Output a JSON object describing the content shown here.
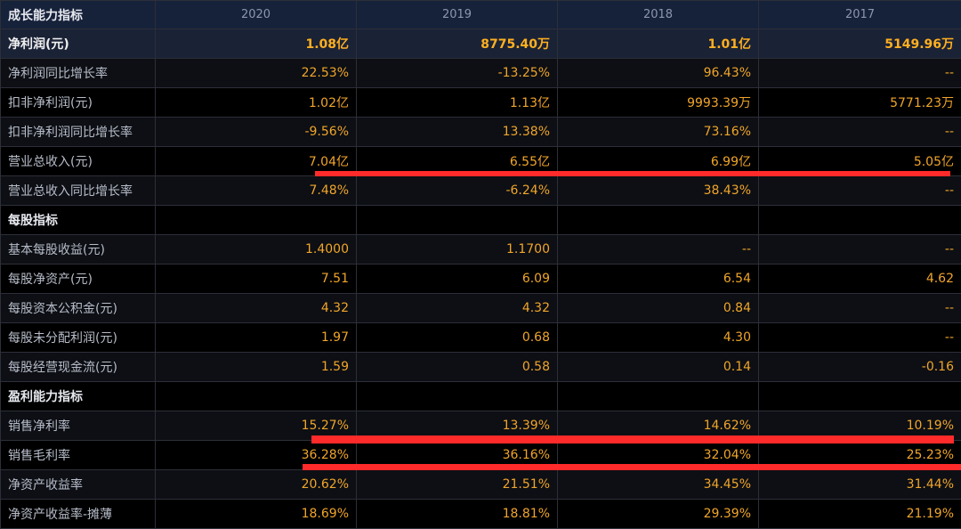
{
  "table": {
    "corner_label": "成长能力指标",
    "years": [
      "2020",
      "2019",
      "2018",
      "2017"
    ],
    "rows": [
      {
        "label": "净利润(元)",
        "values": [
          "1.08亿",
          "8775.40万",
          "1.01亿",
          "5149.96万"
        ]
      },
      {
        "label": "净利润同比增长率",
        "values": [
          "22.53%",
          "-13.25%",
          "96.43%",
          "--"
        ]
      },
      {
        "label": "扣非净利润(元)",
        "values": [
          "1.02亿",
          "1.13亿",
          "9993.39万",
          "5771.23万"
        ]
      },
      {
        "label": "扣非净利润同比增长率",
        "values": [
          "-9.56%",
          "13.38%",
          "73.16%",
          "--"
        ]
      },
      {
        "label": "营业总收入(元)",
        "values": [
          "7.04亿",
          "6.55亿",
          "6.99亿",
          "5.05亿"
        ]
      },
      {
        "label": "营业总收入同比增长率",
        "values": [
          "7.48%",
          "-6.24%",
          "38.43%",
          "--"
        ]
      },
      {
        "label": "每股指标",
        "values": [
          "",
          "",
          "",
          ""
        ]
      },
      {
        "label": "基本每股收益(元)",
        "values": [
          "1.4000",
          "1.1700",
          "--",
          "--"
        ]
      },
      {
        "label": "每股净资产(元)",
        "values": [
          "7.51",
          "6.09",
          "6.54",
          "4.62"
        ]
      },
      {
        "label": "每股资本公积金(元)",
        "values": [
          "4.32",
          "4.32",
          "0.84",
          "--"
        ]
      },
      {
        "label": "每股未分配利润(元)",
        "values": [
          "1.97",
          "0.68",
          "4.30",
          "--"
        ]
      },
      {
        "label": "每股经营现金流(元)",
        "values": [
          "1.59",
          "0.58",
          "0.14",
          "-0.16"
        ]
      },
      {
        "label": "盈利能力指标",
        "values": [
          "",
          "",
          "",
          ""
        ]
      },
      {
        "label": "销售净利率",
        "values": [
          "15.27%",
          "13.39%",
          "14.62%",
          "10.19%"
        ]
      },
      {
        "label": "销售毛利率",
        "values": [
          "36.28%",
          "36.16%",
          "32.04%",
          "25.23%"
        ]
      },
      {
        "label": "净资产收益率",
        "values": [
          "20.62%",
          "21.51%",
          "34.45%",
          "31.44%"
        ]
      },
      {
        "label": "净资产收益率-摊薄",
        "values": [
          "18.69%",
          "18.81%",
          "29.39%",
          "21.19%"
        ]
      }
    ]
  },
  "colors": {
    "value_text": "#f0a52a",
    "highlight_value": "#ffb020",
    "annotation_red": "#ff2a2a"
  }
}
